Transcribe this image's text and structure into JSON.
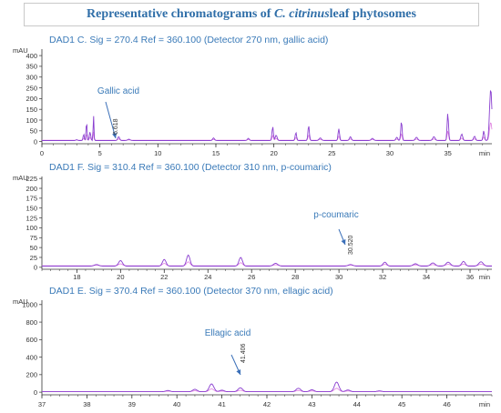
{
  "figure": {
    "title_prefix": "Representative chromatograms of ",
    "title_italic": "C. citrinus",
    "title_suffix": " leaf phytosomes"
  },
  "colors": {
    "title": "#2f6ea8",
    "header_text": "#3a7ab8",
    "trace_main": "#8a3fd0",
    "trace_second": "#e07fe0",
    "annotation": "#3a7ab8",
    "arrow": "#3a6fb8",
    "axis": "#333333"
  },
  "chart_data": [
    {
      "type": "line",
      "header": "DAD1 C. Sig = 270.4    Ref = 360.100 (Detector 270 nm, gallic acid)",
      "ylabel": "mAU",
      "xlabel": "min",
      "xlim": [
        0,
        38.8
      ],
      "ylim": [
        -10,
        430
      ],
      "xticks": [
        0,
        5,
        10,
        15,
        20,
        25,
        30,
        35
      ],
      "yticks": [
        0,
        50,
        100,
        150,
        200,
        250,
        300,
        350,
        400
      ],
      "baseline": 5,
      "peaks": [
        [
          3.0,
          4,
          0.06
        ],
        [
          3.6,
          30,
          0.05
        ],
        [
          3.85,
          95,
          0.04
        ],
        [
          4.15,
          40,
          0.06
        ],
        [
          4.45,
          120,
          0.035
        ],
        [
          6.62,
          18,
          0.08
        ],
        [
          7.5,
          6,
          0.1
        ],
        [
          14.8,
          12,
          0.08
        ],
        [
          17.8,
          10,
          0.08
        ],
        [
          19.9,
          65,
          0.06
        ],
        [
          20.2,
          25,
          0.08
        ],
        [
          21.9,
          38,
          0.06
        ],
        [
          23.0,
          70,
          0.06
        ],
        [
          24.0,
          12,
          0.1
        ],
        [
          25.6,
          55,
          0.06
        ],
        [
          26.6,
          18,
          0.08
        ],
        [
          28.5,
          10,
          0.1
        ],
        [
          30.6,
          15,
          0.08
        ],
        [
          31.0,
          90,
          0.06
        ],
        [
          32.3,
          15,
          0.1
        ],
        [
          33.8,
          18,
          0.1
        ],
        [
          35.0,
          128,
          0.06
        ],
        [
          36.2,
          30,
          0.08
        ],
        [
          37.3,
          20,
          0.08
        ],
        [
          38.1,
          45,
          0.06
        ],
        [
          38.7,
          240,
          0.1
        ]
      ],
      "annotations": [
        {
          "label": "Gallic acid",
          "retention": "6.618",
          "x": 6.618
        }
      ]
    },
    {
      "type": "line",
      "header": "DAD1 F. Sig = 310.4    Ref = 360.100 (Detector 310 nm, p-coumaric)",
      "ylabel": "mAU",
      "xlabel": "min",
      "xlim": [
        16.4,
        37.0
      ],
      "ylim": [
        -5,
        230
      ],
      "xticks": [
        18,
        20,
        22,
        24,
        26,
        28,
        30,
        32,
        34,
        36
      ],
      "yticks": [
        0,
        25,
        50,
        75,
        100,
        125,
        150,
        175,
        200,
        225
      ],
      "baseline": 3,
      "peaks": [
        [
          18.9,
          4,
          0.1
        ],
        [
          20.0,
          14,
          0.09
        ],
        [
          22.0,
          17,
          0.08
        ],
        [
          23.1,
          28,
          0.08
        ],
        [
          25.5,
          22,
          0.08
        ],
        [
          27.1,
          7,
          0.1
        ],
        [
          30.53,
          4,
          0.1
        ],
        [
          32.1,
          10,
          0.08
        ],
        [
          33.5,
          6,
          0.1
        ],
        [
          34.3,
          8,
          0.1
        ],
        [
          35.0,
          10,
          0.1
        ],
        [
          35.7,
          12,
          0.08
        ],
        [
          36.5,
          11,
          0.1
        ]
      ],
      "annotations": [
        {
          "label": "p-coumaric",
          "retention": "30.520",
          "x": 30.52
        }
      ]
    },
    {
      "type": "line",
      "header": "DAD1 E. Sig = 370.4    Ref = 360.100 (Detector 370 nm, ellagic acid)",
      "ylabel": "mAU",
      "xlabel": "min",
      "xlim": [
        37.0,
        47.0
      ],
      "ylim": [
        -30,
        1050
      ],
      "xticks": [
        37,
        38,
        39,
        40,
        41,
        42,
        43,
        44,
        45,
        46
      ],
      "yticks": [
        0,
        200,
        400,
        600,
        800,
        1000
      ],
      "baseline": 5,
      "peaks": [
        [
          39.8,
          15,
          0.05
        ],
        [
          40.4,
          28,
          0.05
        ],
        [
          40.77,
          90,
          0.05
        ],
        [
          41.0,
          18,
          0.05
        ],
        [
          41.41,
          45,
          0.05
        ],
        [
          42.7,
          40,
          0.05
        ],
        [
          43.0,
          22,
          0.05
        ],
        [
          43.55,
          110,
          0.05
        ],
        [
          43.8,
          20,
          0.05
        ],
        [
          44.5,
          10,
          0.05
        ]
      ],
      "annotations": [
        {
          "label": "Ellagic acid",
          "retention": "41.406",
          "x": 41.406
        }
      ]
    }
  ]
}
